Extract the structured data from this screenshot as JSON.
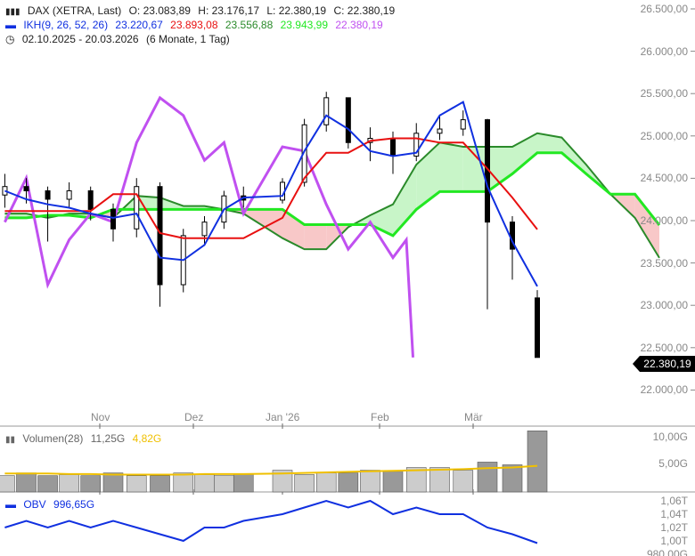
{
  "header": {
    "instrument": "DAX (XETRA, Last)",
    "open": "O: 23.083,89",
    "high": "H: 23.176,17",
    "low": "L: 22.380,19",
    "close": "C: 22.380,19",
    "ikh_label": "IKH(9, 26, 52, 26)",
    "tenkan": "23.220,67",
    "kijun": "23.893,08",
    "span_a": "23.556,88",
    "span_b": "23.943,99",
    "chikou": "22.380,19",
    "range": "02.10.2025 - 20.03.2026",
    "range_note": "(6 Monate, 1 Tag)"
  },
  "price_axis": [
    "26.500,00",
    "26.000,00",
    "25.500,00",
    "25.000,00",
    "24.500,00",
    "24.000,00",
    "23.500,00",
    "23.000,00",
    "22.500,00",
    "22.000,00"
  ],
  "last_price": "22.380,19",
  "months": [
    "Nov",
    "Dez",
    "Jan '26",
    "Feb",
    "Mär"
  ],
  "volume": {
    "label": "Volumen(28)",
    "value": "11,25G",
    "avg": "4,82G",
    "axis": [
      "10,00G",
      "5,00G"
    ]
  },
  "obv": {
    "label": "OBV",
    "value": "996,65G",
    "axis": [
      "1,06T",
      "1,04T",
      "1,02T",
      "1,00T",
      "980,00G"
    ]
  },
  "colors": {
    "tenkan": "#1030e0",
    "kijun": "#e81010",
    "span_a": "#2a8a2a",
    "span_b": "#22e822",
    "chikou": "#c050f0",
    "cloud_up": "#c8f5c8",
    "cloud_down": "#f8c8c8",
    "volume_avg": "#f0c000",
    "obv": "#1030e0"
  },
  "chart_data": {
    "type": "candlestick",
    "dates": [
      "2025-10-03",
      "2025-10-10",
      "2025-10-17",
      "2025-10-24",
      "2025-10-31",
      "2025-11-07",
      "2025-11-14",
      "2025-11-21",
      "2025-11-28",
      "2025-12-05",
      "2025-12-12",
      "2025-12-19",
      "2026-01-02",
      "2026-01-09",
      "2026-01-16",
      "2026-01-23",
      "2026-01-30",
      "2026-02-06",
      "2026-02-13",
      "2026-02-20",
      "2026-02-27",
      "2026-03-06",
      "2026-03-13",
      "2026-03-20"
    ],
    "open": [
      24300,
      24400,
      24350,
      24250,
      24350,
      24130,
      23900,
      24400,
      23240,
      23820,
      23980,
      24290,
      24240,
      24450,
      25130,
      25450,
      24920,
      24970,
      24760,
      25030,
      25080,
      25190,
      23980,
      23083.89
    ],
    "high": [
      24550,
      24500,
      24400,
      24450,
      24400,
      24200,
      24500,
      24450,
      23900,
      24050,
      24350,
      24400,
      24500,
      25200,
      25520,
      25450,
      25100,
      25050,
      25150,
      25250,
      25300,
      25200,
      24050,
      23176.17
    ],
    "low": [
      24150,
      24200,
      23750,
      24150,
      24000,
      23750,
      23800,
      22980,
      23150,
      23700,
      23900,
      24150,
      24200,
      24400,
      25050,
      24850,
      24700,
      24550,
      24700,
      24950,
      25000,
      22950,
      23300,
      22380.19
    ],
    "close": [
      24400,
      24350,
      24250,
      24350,
      24130,
      23900,
      24400,
      23240,
      23820,
      23980,
      24290,
      24240,
      24450,
      25130,
      25450,
      24920,
      24970,
      24760,
      25030,
      25080,
      25190,
      23980,
      23660,
      22380.19
    ],
    "tenkan": [
      24350,
      24250,
      24190,
      24150,
      24080,
      24030,
      24080,
      23560,
      23530,
      23710,
      24130,
      24270,
      24290,
      24820,
      25240,
      25080,
      24820,
      24760,
      24800,
      25240,
      25400,
      24400,
      23750,
      23220.67
    ],
    "kijun": [
      24110,
      24110,
      24110,
      24110,
      24110,
      24310,
      24310,
      23850,
      23790,
      23790,
      23790,
      23790,
      24030,
      24500,
      24800,
      24800,
      24940,
      24970,
      24970,
      24920,
      24920,
      24610,
      24270,
      23893.08
    ],
    "cloud_dates": [
      "2025-10-03",
      "2025-10-10",
      "2025-10-17",
      "2025-10-24",
      "2025-10-31",
      "2025-11-07",
      "2025-11-14",
      "2025-11-21",
      "2025-11-28",
      "2025-12-05",
      "2025-12-12",
      "2025-12-19",
      "2026-01-02",
      "2026-01-09",
      "2026-01-16",
      "2026-01-23",
      "2026-01-30",
      "2026-02-06",
      "2026-02-13",
      "2026-02-20",
      "2026-02-27",
      "2026-03-06",
      "2026-03-13",
      "2026-03-20",
      "2026-03-27",
      "2026-04-03",
      "2026-04-10",
      "2026-04-17",
      "2026-04-24"
    ],
    "span_a": [
      24080,
      24080,
      24030,
      24080,
      24080,
      24030,
      24290,
      24270,
      24170,
      24170,
      24130,
      24080,
      23790,
      23660,
      23660,
      23920,
      24060,
      24190,
      24660,
      24920,
      24870,
      24870,
      24870,
      25030,
      24980,
      24660,
      24310,
      24030,
      23556.88
    ],
    "span_b": [
      24030,
      24030,
      24060,
      24060,
      24030,
      24130,
      24130,
      24130,
      24130,
      24130,
      24130,
      24130,
      24130,
      23950,
      23950,
      23950,
      23950,
      23820,
      24130,
      24340,
      24340,
      24340,
      24550,
      24800,
      24800,
      24550,
      24310,
      24310,
      23943.99
    ],
    "chikou_dates": [
      "2025-10-03",
      "2025-10-10",
      "2025-10-17",
      "2025-10-24",
      "2025-10-31",
      "2025-11-07",
      "2025-11-14",
      "2025-11-21",
      "2025-11-28",
      "2025-12-05",
      "2025-12-12",
      "2025-12-19",
      "2026-01-02",
      "2026-01-09",
      "2026-01-16",
      "2026-01-23",
      "2026-01-30",
      "2026-02-06",
      "2026-02-10",
      "2026-02-12"
    ],
    "chikou": [
      23980,
      24500,
      23240,
      23770,
      24080,
      23980,
      24920,
      25450,
      25240,
      24710,
      24920,
      24080,
      24870,
      24820,
      24190,
      23660,
      23980,
      23560,
      23770,
      22380.19
    ],
    "volume_g": [
      3.0,
      3.5,
      3.0,
      3.2,
      3.0,
      3.5,
      3.0,
      3.0,
      3.5,
      3.2,
      3.0,
      3.3,
      4.0,
      3.2,
      3.5,
      3.5,
      4.0,
      3.8,
      4.5,
      4.5,
      4.0,
      5.5,
      5.0,
      11.25
    ],
    "volume_avg_g": [
      3.4,
      3.4,
      3.4,
      3.3,
      3.3,
      3.2,
      3.2,
      3.2,
      3.2,
      3.3,
      3.3,
      3.3,
      3.4,
      3.5,
      3.6,
      3.7,
      3.8,
      3.9,
      4.0,
      4.1,
      4.2,
      4.4,
      4.5,
      4.82
    ],
    "obv_t": [
      1.02,
      1.03,
      1.02,
      1.03,
      1.02,
      1.03,
      1.02,
      1.01,
      1.0,
      1.02,
      1.02,
      1.03,
      1.04,
      1.05,
      1.06,
      1.05,
      1.06,
      1.04,
      1.05,
      1.04,
      1.04,
      1.02,
      1.01,
      0.99665
    ],
    "ylim": [
      22000,
      26500
    ],
    "grid": false
  }
}
